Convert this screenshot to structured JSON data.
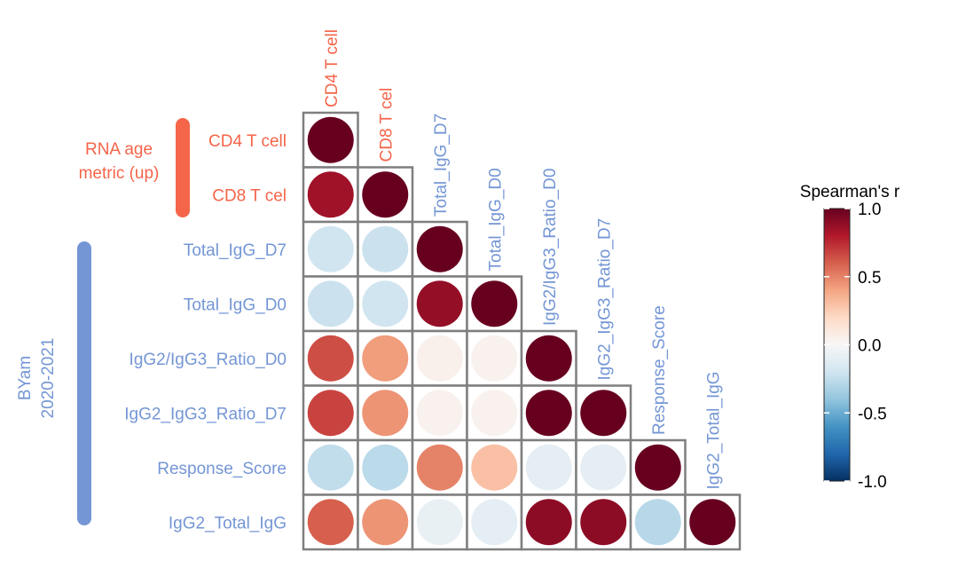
{
  "chart_data": {
    "type": "heatmap",
    "variables": [
      "CD4 T cell",
      "CD8 T cel",
      "Total_IgG_D7",
      "Total_IgG_D0",
      "IgG2/IgG3_Ratio_D0",
      "IgG2_IgG3_Ratio_D7",
      "Response_Score",
      "IgG2_Total_IgG"
    ],
    "lower_triangle_values": [
      [
        1.0
      ],
      [
        0.85,
        1.0
      ],
      [
        -0.2,
        -0.22,
        1.0
      ],
      [
        -0.22,
        -0.2,
        0.88,
        1.0
      ],
      [
        0.65,
        0.42,
        0.05,
        0.04,
        1.0
      ],
      [
        0.68,
        0.45,
        0.04,
        0.04,
        1.0,
        1.0
      ],
      [
        -0.25,
        -0.27,
        0.5,
        0.3,
        -0.1,
        -0.1,
        1.0
      ],
      [
        0.6,
        0.45,
        -0.08,
        -0.1,
        0.9,
        0.9,
        -0.28,
        1.0
      ]
    ],
    "groups": [
      {
        "label_lines": [
          "RNA age",
          "metric (up)"
        ],
        "color": "#f4654a",
        "members": [
          "CD4 T cell",
          "CD8 T cel"
        ]
      },
      {
        "label_lines": [
          "BYam",
          "2020-2021"
        ],
        "color": "#7496d5",
        "members": [
          "Total_IgG_D7",
          "Total_IgG_D0",
          "IgG2/IgG3_Ratio_D0",
          "IgG2_IgG3_Ratio_D7",
          "Response_Score",
          "IgG2_Total_IgG"
        ]
      }
    ],
    "legend": {
      "title": "Spearman's r",
      "ticks": [
        "1.0",
        "0.5",
        "0.0",
        "-0.5",
        "-1.0"
      ],
      "range": [
        -1.0,
        1.0
      ],
      "colors": [
        "#053061",
        "#2166ac",
        "#4393c3",
        "#92c5de",
        "#d1e5f0",
        "#f7f7f7",
        "#fddbc7",
        "#f4a582",
        "#d6604d",
        "#b2182b",
        "#67001f"
      ]
    }
  }
}
